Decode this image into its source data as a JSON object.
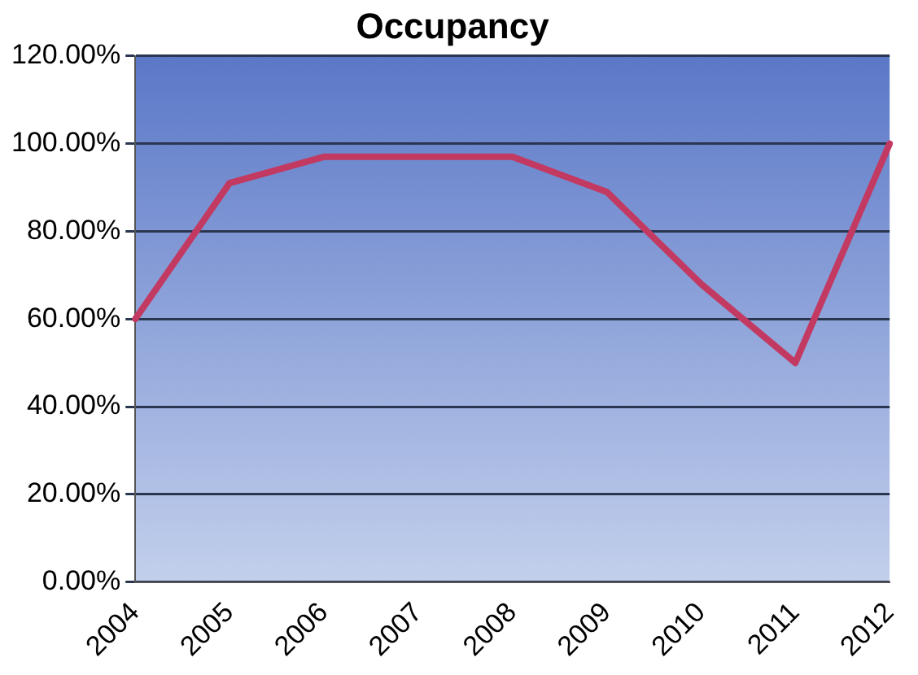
{
  "chart_data": {
    "type": "line",
    "title": "Occupancy",
    "categories": [
      "2004",
      "2005",
      "2006",
      "2007",
      "2008",
      "2009",
      "2010",
      "2011",
      "2012"
    ],
    "series": [
      {
        "color": "#c23a62",
        "values": [
          60,
          91,
          97,
          97,
          97,
          89,
          68,
          50,
          100
        ]
      }
    ],
    "ylim": [
      0,
      120
    ],
    "yticks": [
      {
        "value": 0,
        "label": "0.00%"
      },
      {
        "value": 20,
        "label": "20.00%"
      },
      {
        "value": 40,
        "label": "40.00%"
      },
      {
        "value": 60,
        "label": "60.00%"
      },
      {
        "value": 80,
        "label": "80.00%"
      },
      {
        "value": 100,
        "label": "100.00%"
      },
      {
        "value": 120,
        "label": "120.00%"
      }
    ],
    "grid": "y",
    "legend": false,
    "marker": "none",
    "line_style": "solid"
  }
}
